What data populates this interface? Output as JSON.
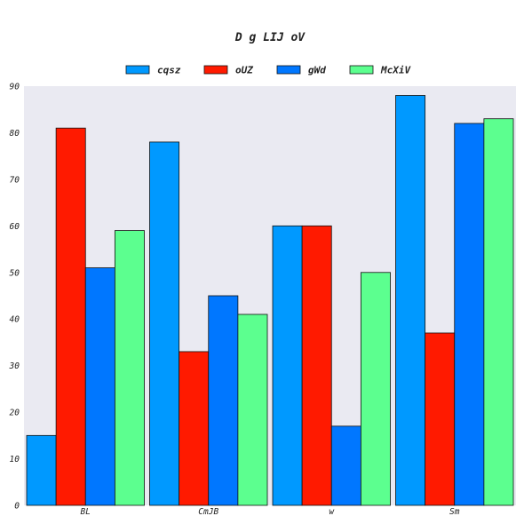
{
  "chart_data": {
    "type": "bar",
    "title": "D g LIJ oV",
    "xlabel": "",
    "ylabel": "",
    "categories": [
      "BL",
      "CmJB",
      "w",
      "Sm"
    ],
    "ylim": [
      0,
      90
    ],
    "yticks": [
      0,
      10,
      20,
      30,
      40,
      50,
      60,
      70,
      80,
      90
    ],
    "grid": false,
    "legend_position": "top",
    "plot_background": "#eaeaf2",
    "series": [
      {
        "name": "cqsz",
        "color": "#0099ff",
        "values": [
          15,
          78,
          60,
          88
        ]
      },
      {
        "name": "oUZ",
        "color": "#ff1a00",
        "values": [
          81,
          33,
          60,
          37
        ]
      },
      {
        "name": "gWd",
        "color": "#0077ff",
        "values": [
          51,
          45,
          17,
          82
        ]
      },
      {
        "name": "McXiV",
        "color": "#5cff8f",
        "values": [
          59,
          41,
          50,
          83
        ]
      }
    ]
  }
}
